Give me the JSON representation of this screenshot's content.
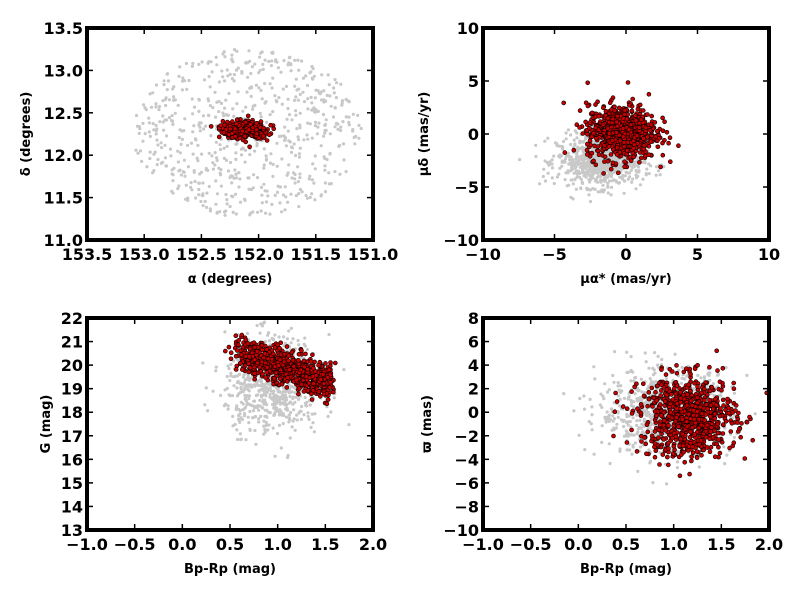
{
  "colors": {
    "field": "#c8c8c8",
    "member": "#c80000",
    "member_edge": "#000000",
    "frame": "#000000"
  },
  "chart_data": [
    {
      "type": "scatter",
      "xlabel": "α (degrees)",
      "ylabel": "δ (degrees)",
      "xlim": [
        153.5,
        151.0
      ],
      "ylim": [
        11.0,
        13.5
      ],
      "xticks": [
        "153.5",
        "153.0",
        "152.5",
        "152.0",
        "151.5",
        "151.0"
      ],
      "yticks": [
        "11.0",
        "11.5",
        "12.0",
        "12.5",
        "13.0",
        "13.5"
      ],
      "field": {
        "shape": "ellipse",
        "center": [
          152.1,
          12.27
        ],
        "radius": [
          1.0,
          1.0
        ],
        "count": 650
      },
      "members": {
        "shape": "gaussian",
        "center": [
          152.13,
          12.3
        ],
        "sigma": [
          0.09,
          0.05
        ],
        "count": 500
      }
    },
    {
      "type": "scatter",
      "xlabel": "μα* (mas/yr)",
      "ylabel": "μδ (mas/yr)",
      "xlim": [
        -10,
        10
      ],
      "ylim": [
        -10,
        10
      ],
      "xticks": [
        "−10",
        "−5",
        "0",
        "5",
        "10"
      ],
      "yticks": [
        "−10",
        "−5",
        "0",
        "5",
        "10"
      ],
      "field": {
        "shape": "gaussian",
        "center": [
          -1.8,
          -2.6
        ],
        "sigma": [
          1.5,
          1.2
        ],
        "count": 800
      },
      "members": {
        "shape": "gaussian",
        "center": [
          -0.3,
          0.2
        ],
        "sigma": [
          1.2,
          1.3
        ],
        "count": 750
      }
    },
    {
      "type": "scatter",
      "xlabel": "Bp-Rp (mag)",
      "ylabel": "G (mag)",
      "xlim": [
        -1.0,
        2.0
      ],
      "ylim": [
        13,
        22
      ],
      "xticks": [
        "−1.0",
        "−0.5",
        "0.0",
        "0.5",
        "1.0",
        "1.5",
        "2.0"
      ],
      "yticks": [
        "13",
        "14",
        "15",
        "16",
        "17",
        "18",
        "19",
        "20",
        "21",
        "22"
      ],
      "field": {
        "shape": "gaussian",
        "center": [
          0.95,
          19.2
        ],
        "sigma": [
          0.25,
          1.0
        ],
        "count": 700
      },
      "members": {
        "shape": "band",
        "x_range": [
          0.55,
          1.55
        ],
        "y_at_x0": 20.5,
        "y_at_x1": 19.3,
        "spread": 0.35,
        "count": 800
      }
    },
    {
      "type": "scatter",
      "xlabel": "Bp-Rp (mag)",
      "ylabel": "ϖ (mas)",
      "xlim": [
        -1.0,
        2.0
      ],
      "ylim": [
        -10,
        8
      ],
      "xticks": [
        "−1.0",
        "−0.5",
        "0.0",
        "0.5",
        "1.0",
        "1.5",
        "2.0"
      ],
      "yticks": [
        "−10",
        "−8",
        "−6",
        "−4",
        "−2",
        "0",
        "2",
        "4",
        "6",
        "8"
      ],
      "field": {
        "shape": "gaussian",
        "center": [
          0.9,
          0.0
        ],
        "sigma": [
          0.35,
          1.8
        ],
        "count": 700
      },
      "members": {
        "shape": "gaussian",
        "center": [
          1.15,
          -0.4
        ],
        "sigma": [
          0.25,
          1.7
        ],
        "count": 800
      }
    }
  ]
}
